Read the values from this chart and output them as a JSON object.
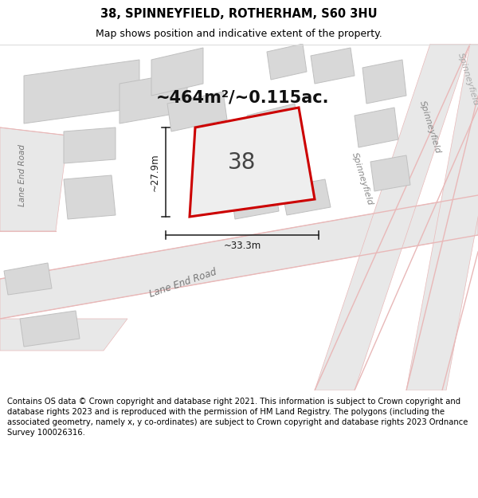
{
  "title": "38, SPINNEYFIELD, ROTHERHAM, S60 3HU",
  "subtitle": "Map shows position and indicative extent of the property.",
  "area_text": "~464m²/~0.115ac.",
  "label_38": "38",
  "dim_h": "~27.9m",
  "dim_w": "~33.3m",
  "footer": "Contains OS data © Crown copyright and database right 2021. This information is subject to Crown copyright and database rights 2023 and is reproduced with the permission of HM Land Registry. The polygons (including the associated geometry, namely x, y co-ordinates) are subject to Crown copyright and database rights 2023 Ordnance Survey 100026316.",
  "bg_color": "#ffffff",
  "map_bg": "#f8f8f8",
  "road_fill": "#e8e8e8",
  "road_stroke": "#e8b8b8",
  "building_fill": "#d8d8d8",
  "building_stroke": "#c0c0c0",
  "property_stroke": "#cc0000",
  "property_fill": "#eeeeee",
  "dim_color": "#1a1a1a",
  "title_fontsize": 10.5,
  "subtitle_fontsize": 9,
  "area_fontsize": 15,
  "label_fontsize": 20,
  "footer_fontsize": 7.2
}
